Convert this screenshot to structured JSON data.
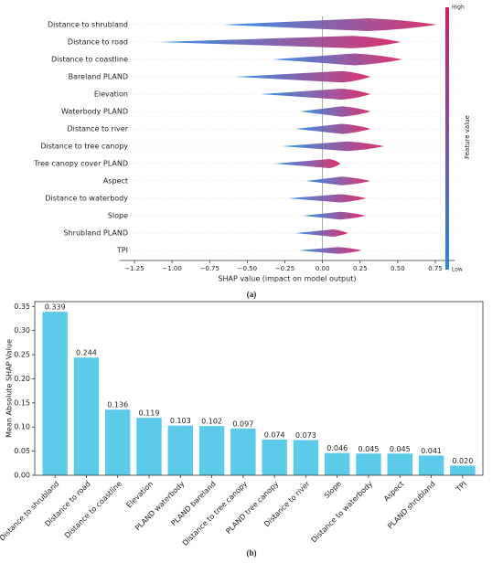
{
  "chart_data": [
    {
      "type": "beeswarm",
      "categories": [
        "Distance to shrubland",
        "Distance to road",
        "Distance to coastline",
        "Bareland PLAND",
        "Elevation",
        "Waterbody PLAND",
        "Distance to river",
        "Distance to tree canopy",
        "Tree canopy cover PLAND",
        "Aspect",
        "Distance to waterbody",
        "Slope",
        "Shrubland PLAND",
        "TPI"
      ],
      "values": [
        [
          -0.66,
          0.76
        ],
        [
          -1.09,
          0.52
        ],
        [
          -0.33,
          0.53
        ],
        [
          -0.58,
          0.32
        ],
        [
          -0.41,
          0.32
        ],
        [
          -0.15,
          0.32
        ],
        [
          -0.18,
          0.32
        ],
        [
          -0.27,
          0.41
        ],
        [
          -0.32,
          0.12
        ],
        [
          -0.11,
          0.32
        ],
        [
          -0.23,
          0.29
        ],
        [
          -0.13,
          0.29
        ],
        [
          -0.18,
          0.17
        ],
        [
          -0.16,
          0.26
        ]
      ],
      "xlabel": "SHAP value (impact on model output)",
      "xlim": [
        -1.35,
        0.88
      ],
      "xticks": [
        {
          "value": -1.25,
          "label": "−1.25"
        },
        {
          "value": -1.0,
          "label": "−1.00"
        },
        {
          "value": -0.75,
          "label": "−0.75"
        },
        {
          "value": -0.5,
          "label": "−0.50"
        },
        {
          "value": -0.25,
          "label": "−0.25"
        },
        {
          "value": 0,
          "label": "0.00"
        },
        {
          "value": 0.25,
          "label": "0.25"
        },
        {
          "value": 0.5,
          "label": "0.50"
        },
        {
          "value": 0.75,
          "label": "0.75"
        }
      ],
      "colorbar": {
        "label": "Feature value",
        "high": "High",
        "low": "Low",
        "colors": [
          "#1e88e5",
          "#d81b60"
        ]
      },
      "caption": "(a)"
    },
    {
      "type": "bar",
      "categories": [
        "Distance to shrubland",
        "Distance to road",
        "Distance to coastline",
        "Elevation",
        "PLAND waterbody",
        "PLAND bareland",
        "Distance to tree canopy",
        "PLAND tree canopy",
        "Distance to river",
        "Slope",
        "Distance to waterbody",
        "Aspect",
        "PLAND shrubland",
        "TPI"
      ],
      "values": [
        0.339,
        0.244,
        0.136,
        0.119,
        0.103,
        0.102,
        0.097,
        0.074,
        0.073,
        0.046,
        0.045,
        0.045,
        0.041,
        0.02
      ],
      "value_labels": [
        "0.339",
        "0.244",
        "0.136",
        "0.119",
        "0.103",
        "0.102",
        "0.097",
        "0.074",
        "0.073",
        "0.046",
        "0.045",
        "0.045",
        "0.041",
        "0.020"
      ],
      "color": "#5ccbea",
      "ylabel": "Mean Absolute SHAP Value",
      "ylim": [
        0,
        0.36
      ],
      "yticks": [
        {
          "value": 0,
          "label": "0.00"
        },
        {
          "value": 0.05,
          "label": "0.05"
        },
        {
          "value": 0.1,
          "label": "0.10"
        },
        {
          "value": 0.15,
          "label": "0.15"
        },
        {
          "value": 0.2,
          "label": "0.20"
        },
        {
          "value": 0.25,
          "label": "0.25"
        },
        {
          "value": 0.3,
          "label": "0.30"
        },
        {
          "value": 0.35,
          "label": "0.35"
        }
      ],
      "caption": "(b)"
    }
  ]
}
